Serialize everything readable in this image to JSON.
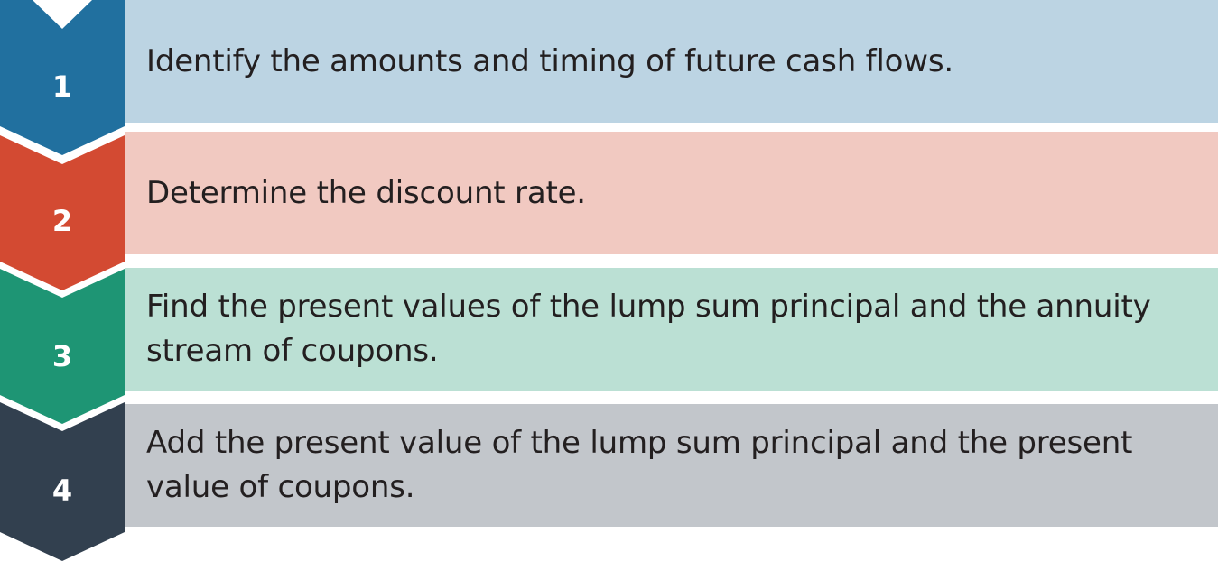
{
  "steps": [
    {
      "number": "1",
      "text": "Identify the amounts and timing of future cash flows.",
      "chevron_color": "#21709f",
      "panel_color": "#bcd4e3"
    },
    {
      "number": "2",
      "text": "Determine the discount rate.",
      "chevron_color": "#d34a32",
      "panel_color": "#f1c9c1"
    },
    {
      "number": "3",
      "text": "Find the present values of the lump sum principal and the annuity stream of coupons.",
      "chevron_color": "#1e9574",
      "panel_color": "#bbe0d4"
    },
    {
      "number": "4",
      "text": "Add the present value of the lump sum principal and the present value of coupons.",
      "chevron_color": "#32404f",
      "panel_color": "#c2c6cb"
    }
  ]
}
